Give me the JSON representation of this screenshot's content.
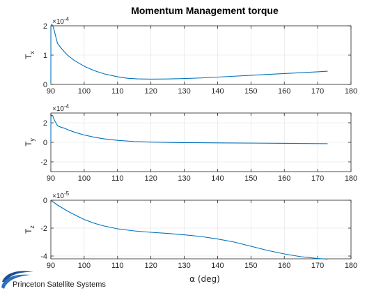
{
  "figure": {
    "title": "Momentum Management torque",
    "xlabel_symbol": "α",
    "xlabel_unit": "(deg)",
    "logo_text": "Princeton Satellite Systems",
    "logo_icon": "swoosh-logo-icon",
    "line_color": "#0072BD",
    "grid_color": "#DFDFDF",
    "axis_color": "#262626"
  },
  "chart_data": [
    {
      "type": "line",
      "ylabel_main": "T",
      "ylabel_sub": "x",
      "exponent_base": "×10",
      "exponent_power": "-4",
      "scale": 0.0001,
      "xlim": [
        90,
        180
      ],
      "ylim": [
        0,
        2
      ],
      "xticks": [
        90,
        100,
        110,
        120,
        130,
        140,
        150,
        160,
        170,
        180
      ],
      "yticks": [
        0,
        1,
        2
      ],
      "grid": true,
      "series": [
        {
          "x": [
            90,
            90.02,
            90.3,
            90.6,
            91,
            91.5,
            92,
            93,
            94,
            95,
            97,
            100,
            103,
            106,
            110,
            113,
            116,
            120,
            125,
            130,
            135,
            140,
            145,
            150,
            155,
            160,
            165,
            170,
            173
          ],
          "y": [
            0,
            2.0,
            2.05,
            2.0,
            1.85,
            1.62,
            1.4,
            1.25,
            1.12,
            1.0,
            0.82,
            0.62,
            0.47,
            0.36,
            0.26,
            0.21,
            0.19,
            0.18,
            0.185,
            0.2,
            0.22,
            0.25,
            0.28,
            0.31,
            0.34,
            0.37,
            0.4,
            0.43,
            0.45
          ]
        }
      ]
    },
    {
      "type": "line",
      "ylabel_main": "T",
      "ylabel_sub": "y",
      "exponent_base": "×10",
      "exponent_power": "-4",
      "scale": 0.0001,
      "xlim": [
        90,
        180
      ],
      "ylim": [
        -3,
        3
      ],
      "xticks": [
        90,
        100,
        110,
        120,
        130,
        140,
        150,
        160,
        170,
        180
      ],
      "yticks": [
        -2,
        0,
        2
      ],
      "grid": true,
      "series": [
        {
          "x": [
            90,
            90.02,
            90.3,
            90.6,
            91,
            91.5,
            92,
            93,
            94,
            95,
            97,
            100,
            103,
            106,
            110,
            115,
            120,
            130,
            140,
            150,
            160,
            170,
            173
          ],
          "y": [
            0,
            2.6,
            2.8,
            2.7,
            2.3,
            2.0,
            1.7,
            1.55,
            1.45,
            1.3,
            1.05,
            0.75,
            0.52,
            0.35,
            0.2,
            0.08,
            0.02,
            -0.03,
            -0.06,
            -0.08,
            -0.1,
            -0.13,
            -0.14
          ]
        }
      ]
    },
    {
      "type": "line",
      "ylabel_main": "T",
      "ylabel_sub": "z",
      "exponent_base": "×10",
      "exponent_power": "-5",
      "scale": 1e-05,
      "xlim": [
        90,
        180
      ],
      "ylim": [
        -4.2,
        0
      ],
      "xticks": [
        90,
        100,
        110,
        120,
        130,
        140,
        150,
        160,
        170,
        180
      ],
      "yticks": [
        -4,
        -2,
        0
      ],
      "grid": true,
      "series": [
        {
          "x": [
            90,
            92,
            95,
            98,
            100,
            103,
            106,
            110,
            115,
            120,
            125,
            130,
            135,
            140,
            145,
            150,
            155,
            160,
            165,
            170,
            173
          ],
          "y": [
            0,
            -0.35,
            -0.78,
            -1.15,
            -1.38,
            -1.65,
            -1.85,
            -2.05,
            -2.2,
            -2.3,
            -2.38,
            -2.48,
            -2.6,
            -2.78,
            -3.0,
            -3.3,
            -3.6,
            -3.85,
            -4.05,
            -4.18,
            -4.22
          ]
        }
      ]
    }
  ]
}
